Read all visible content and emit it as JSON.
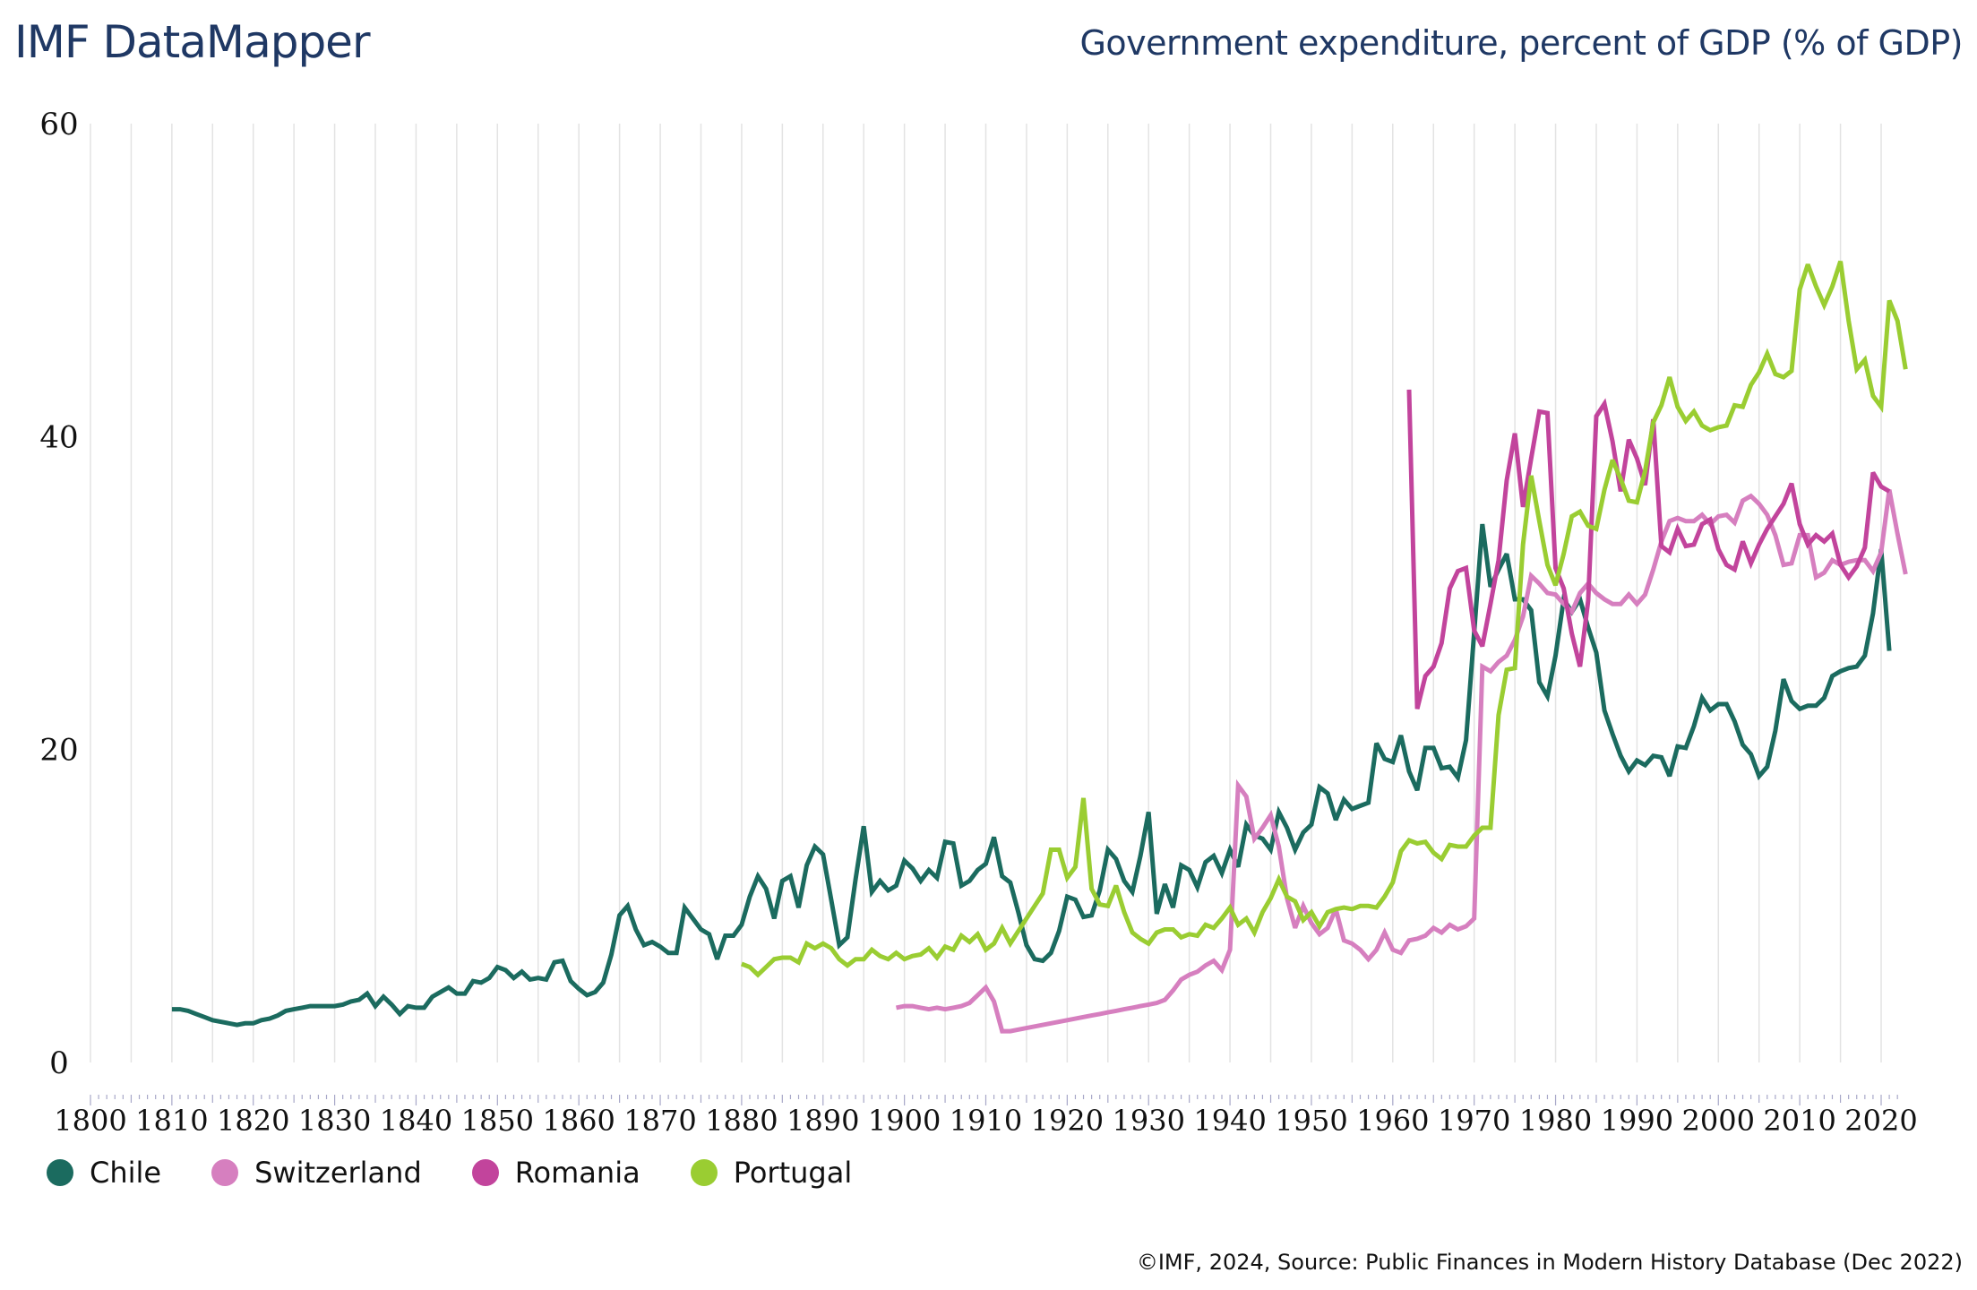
{
  "header": {
    "brand": "IMF DataMapper",
    "title": "Government expenditure, percent of GDP (% of GDP)"
  },
  "footer": {
    "source": "©IMF, 2024, Source: Public Finances in Modern History Database (Dec 2022)"
  },
  "chart_data": {
    "type": "line",
    "title": "Government expenditure, percent of GDP (% of GDP)",
    "xlabel": "",
    "ylabel": "",
    "xlim": [
      1800,
      2022
    ],
    "ylim": [
      0,
      60
    ],
    "yticks": [
      0,
      20,
      40,
      60
    ],
    "xticks": [
      1800,
      1810,
      1820,
      1830,
      1840,
      1850,
      1860,
      1870,
      1880,
      1890,
      1900,
      1910,
      1920,
      1930,
      1940,
      1950,
      1960,
      1970,
      1980,
      1990,
      2000,
      2010,
      2020
    ],
    "grid": "vertical every 5 years",
    "legend_position": "bottom-left",
    "series": [
      {
        "name": "Chile",
        "color": "#1b6b5f",
        "start_year": 1810,
        "values": [
          3.4,
          3.4,
          3.3,
          3.1,
          2.9,
          2.7,
          2.6,
          2.5,
          2.4,
          2.5,
          2.5,
          2.7,
          2.8,
          3.0,
          3.3,
          3.4,
          3.5,
          3.6,
          3.6,
          3.6,
          3.6,
          3.7,
          3.9,
          4.0,
          4.4,
          3.6,
          4.2,
          3.7,
          3.1,
          3.6,
          3.5,
          3.5,
          4.2,
          4.5,
          4.8,
          4.4,
          4.4,
          5.2,
          5.1,
          5.4,
          6.1,
          5.9,
          5.4,
          5.8,
          5.3,
          5.4,
          5.3,
          6.4,
          6.5,
          5.2,
          4.7,
          4.3,
          4.5,
          5.1,
          6.9,
          9.4,
          10.0,
          8.5,
          7.5,
          7.7,
          7.4,
          7.0,
          7.0,
          9.9,
          9.2,
          8.5,
          8.2,
          6.6,
          8.1,
          8.1,
          8.8,
          10.6,
          11.9,
          11.1,
          9.2,
          11.6,
          11.9,
          9.9,
          12.6,
          13.8,
          13.3,
          10.4,
          7.5,
          8.0,
          11.7,
          15.1,
          10.9,
          11.6,
          11.0,
          11.3,
          12.9,
          12.4,
          11.6,
          12.3,
          11.8,
          14.1,
          14.0,
          11.3,
          11.6,
          12.3,
          12.7,
          14.4,
          11.9,
          11.5,
          9.6,
          7.5,
          6.6,
          6.5,
          7.0,
          8.4,
          10.6,
          10.4,
          9.3,
          9.4,
          11.0,
          13.6,
          13.0,
          11.6,
          10.9,
          13.2,
          16.0,
          9.5,
          11.4,
          9.9,
          12.6,
          12.3,
          11.2,
          12.8,
          13.2,
          12.1,
          13.6,
          12.5,
          15.2,
          14.5,
          14.3,
          13.6,
          16.0,
          15.0,
          13.6,
          14.7,
          15.2,
          17.6,
          17.2,
          15.5,
          16.8,
          16.2,
          16.4,
          16.6,
          20.4,
          19.4,
          19.2,
          20.9,
          18.6,
          17.4,
          20.1,
          20.1,
          18.8,
          18.9,
          18.2,
          20.6,
          27.5,
          34.4,
          30.4,
          31.5,
          32.5,
          29.6,
          29.6,
          28.9,
          24.3,
          23.4,
          26.0,
          29.6,
          28.8,
          29.6,
          27.8,
          26.2,
          22.5,
          21.0,
          19.6,
          18.6,
          19.3,
          19.0,
          19.6,
          19.5,
          18.3,
          20.2,
          20.1,
          21.5,
          23.3,
          22.5,
          22.9,
          22.9,
          21.8,
          20.3,
          19.7,
          18.3,
          18.9,
          21.2,
          24.5,
          23.1,
          22.6,
          22.8,
          22.8,
          23.3,
          24.7,
          25.0,
          25.2,
          25.3,
          26.0,
          28.7,
          32.8,
          26.3
        ]
      },
      {
        "name": "Switzerland",
        "color": "#d67fbf",
        "start_year": 1899,
        "values": [
          3.5,
          3.6,
          3.6,
          3.5,
          3.4,
          3.5,
          3.4,
          3.5,
          3.6,
          3.8,
          4.3,
          4.8,
          3.9,
          2.0,
          2.0,
          2.1,
          2.2,
          2.3,
          2.4,
          2.5,
          2.6,
          2.7,
          2.8,
          2.9,
          3.0,
          3.1,
          3.2,
          3.3,
          3.4,
          3.5,
          3.6,
          3.7,
          3.8,
          4.0,
          4.6,
          5.3,
          5.6,
          5.8,
          6.2,
          6.5,
          5.9,
          7.2,
          17.7,
          17.0,
          14.3,
          15.0,
          15.8,
          13.8,
          10.5,
          8.6,
          10.0,
          8.9,
          8.2,
          8.6,
          9.8,
          7.8,
          7.6,
          7.2,
          6.6,
          7.2,
          8.3,
          7.2,
          7.0,
          7.8,
          7.9,
          8.1,
          8.6,
          8.3,
          8.8,
          8.5,
          8.7,
          9.2,
          25.3,
          25.0,
          25.6,
          26.0,
          27.0,
          28.5,
          31.1,
          30.6,
          30.0,
          29.9,
          29.3,
          28.8,
          30.0,
          30.6,
          30.0,
          29.6,
          29.3,
          29.3,
          29.9,
          29.3,
          29.9,
          31.5,
          33.3,
          34.6,
          34.8,
          34.6,
          34.6,
          35.0,
          34.4,
          34.9,
          35.0,
          34.5,
          35.9,
          36.2,
          35.7,
          35.0,
          33.7,
          31.8,
          31.9,
          33.7,
          33.7,
          31.0,
          31.3,
          32.1,
          31.8,
          32.0,
          32.1,
          32.1,
          31.4,
          32.6,
          36.6,
          33.8,
          31.2
        ]
      },
      {
        "name": "Romania",
        "color": "#c2449c",
        "start_year": 1962,
        "values": [
          43.0,
          22.6,
          24.7,
          25.3,
          26.8,
          30.3,
          31.4,
          31.6,
          27.6,
          26.6,
          29.3,
          32.1,
          37.2,
          40.2,
          35.5,
          38.6,
          41.6,
          41.5,
          31.6,
          30.3,
          27.4,
          25.3,
          29.5,
          41.3,
          42.1,
          39.7,
          36.5,
          39.8,
          38.6,
          36.9,
          41.1,
          33.0,
          32.6,
          34.1,
          33.0,
          33.1,
          34.4,
          34.7,
          32.8,
          31.8,
          31.5,
          33.3,
          31.9,
          33.1,
          34.1,
          34.9,
          35.7,
          37.0,
          34.4,
          33.1,
          33.7,
          33.3,
          33.8,
          31.8,
          31.0,
          31.7,
          32.9,
          37.7,
          36.8,
          36.5
        ]
      },
      {
        "name": "Portugal",
        "color": "#9acd32",
        "start_year": 1880,
        "values": [
          6.3,
          6.1,
          5.6,
          6.1,
          6.6,
          6.7,
          6.7,
          6.4,
          7.6,
          7.3,
          7.6,
          7.3,
          6.6,
          6.2,
          6.6,
          6.6,
          7.2,
          6.8,
          6.6,
          7.0,
          6.6,
          6.8,
          6.9,
          7.3,
          6.7,
          7.4,
          7.2,
          8.1,
          7.7,
          8.2,
          7.2,
          7.6,
          8.6,
          7.6,
          8.4,
          9.2,
          10.0,
          10.8,
          13.6,
          13.6,
          11.8,
          12.5,
          16.9,
          11.1,
          10.1,
          10.0,
          11.3,
          9.6,
          8.3,
          7.9,
          7.6,
          8.3,
          8.5,
          8.5,
          8.0,
          8.2,
          8.1,
          8.8,
          8.6,
          9.2,
          9.9,
          8.8,
          9.2,
          8.3,
          9.6,
          10.5,
          11.7,
          10.6,
          10.3,
          9.1,
          9.6,
          8.7,
          9.6,
          9.8,
          9.9,
          9.8,
          10.0,
          10.0,
          9.9,
          10.6,
          11.5,
          13.5,
          14.2,
          14.0,
          14.1,
          13.4,
          13.0,
          13.9,
          13.8,
          13.8,
          14.5,
          15.0,
          15.0,
          22.2,
          25.1,
          25.2,
          33.1,
          37.5,
          34.6,
          31.8,
          30.5,
          32.5,
          34.9,
          35.2,
          34.3,
          34.1,
          36.6,
          38.5,
          37.3,
          35.9,
          35.8,
          37.8,
          40.9,
          42.0,
          43.8,
          41.9,
          41.0,
          41.6,
          40.7,
          40.4,
          40.6,
          40.7,
          42.0,
          41.9,
          43.3,
          44.1,
          45.3,
          44.0,
          43.8,
          44.2,
          49.4,
          51.0,
          49.6,
          48.4,
          49.6,
          51.2,
          47.4,
          44.3,
          44.9,
          42.6,
          41.9,
          48.7,
          47.4,
          44.3
        ]
      }
    ]
  }
}
